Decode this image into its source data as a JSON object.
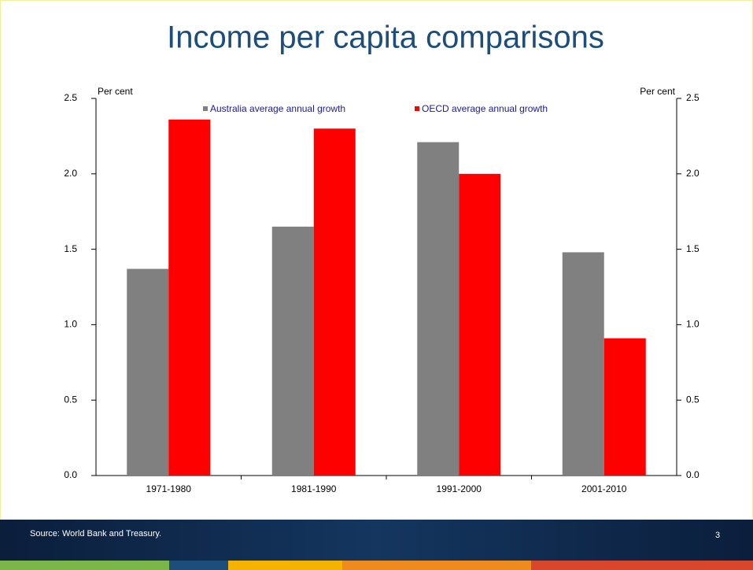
{
  "chart_data": {
    "type": "bar",
    "title": "Income per capita comparisons",
    "ylabel": "Per cent",
    "y2label": "Per cent",
    "categories": [
      "1971-1980",
      "1981-1990",
      "1991-2000",
      "2001-2010"
    ],
    "series": [
      {
        "name": "Australia average annual growth",
        "color": "#808080",
        "values": [
          1.37,
          1.65,
          2.21,
          1.48
        ]
      },
      {
        "name": "OECD average annual growth",
        "color": "#ff0000",
        "values": [
          2.36,
          2.3,
          2.0,
          0.91
        ]
      }
    ],
    "ylim": [
      0,
      2.5
    ],
    "yticks": [
      {
        "value": 0,
        "label": "0.0"
      },
      0.5,
      {
        "value": 1,
        "label": "1.0"
      },
      1.5,
      {
        "value": 2,
        "label": "2.0"
      },
      2.5
    ],
    "y2lim": [
      0,
      2.5
    ],
    "y2ticks": [
      {
        "value": 0,
        "label": "0.0"
      },
      0.5,
      {
        "value": 1,
        "label": "1.0"
      },
      1.5,
      {
        "value": 2,
        "label": "2.0"
      },
      2.5
    ],
    "grid": false,
    "legend": "top"
  },
  "footer": {
    "source": "Source: World Bank and Treasury.",
    "page_number": "3"
  }
}
